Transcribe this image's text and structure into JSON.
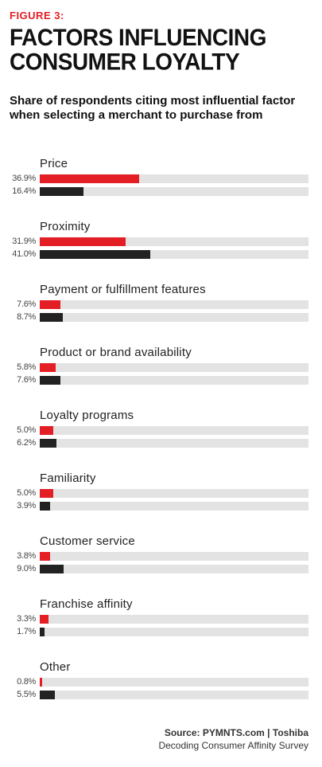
{
  "figure_label": "FIGURE 3:",
  "title": "FACTORS INFLUENCING CONSUMER LOYALTY",
  "subtitle": "Share of respondents citing most influential factor when selecting a merchant to purchase from",
  "source": {
    "line1": "Source: PYMNTS.com  |  Toshiba",
    "line2": "Decoding Consumer Affinity Survey"
  },
  "colors": {
    "series0": "#e31e24",
    "series1": "#222222",
    "track": "#e3e3e3",
    "accent": "#e31e24"
  },
  "chart_data": {
    "type": "bar",
    "orientation": "horizontal",
    "categories": [
      "Price",
      "Proximity",
      "Payment or fulfillment features",
      "Product or brand availability",
      "Loyalty programs",
      "Familiarity",
      "Customer service",
      "Franchise affinity",
      "Other"
    ],
    "series": [
      {
        "values": [
          36.9,
          31.9,
          7.6,
          5.8,
          5.0,
          5.0,
          3.8,
          3.3,
          0.8
        ],
        "labels": [
          "36.9%",
          "31.9%",
          "7.6%",
          "5.8%",
          "5.0%",
          "5.0%",
          "3.8%",
          "3.3%",
          "0.8%"
        ]
      },
      {
        "values": [
          16.4,
          41.0,
          8.7,
          7.6,
          6.2,
          3.9,
          9.0,
          1.7,
          5.5
        ],
        "labels": [
          "16.4%",
          "41.0%",
          "8.7%",
          "7.6%",
          "6.2%",
          "3.9%",
          "9.0%",
          "1.7%",
          "5.5%"
        ]
      }
    ],
    "xlim": [
      0,
      100
    ],
    "grid": false,
    "legend": "none"
  }
}
